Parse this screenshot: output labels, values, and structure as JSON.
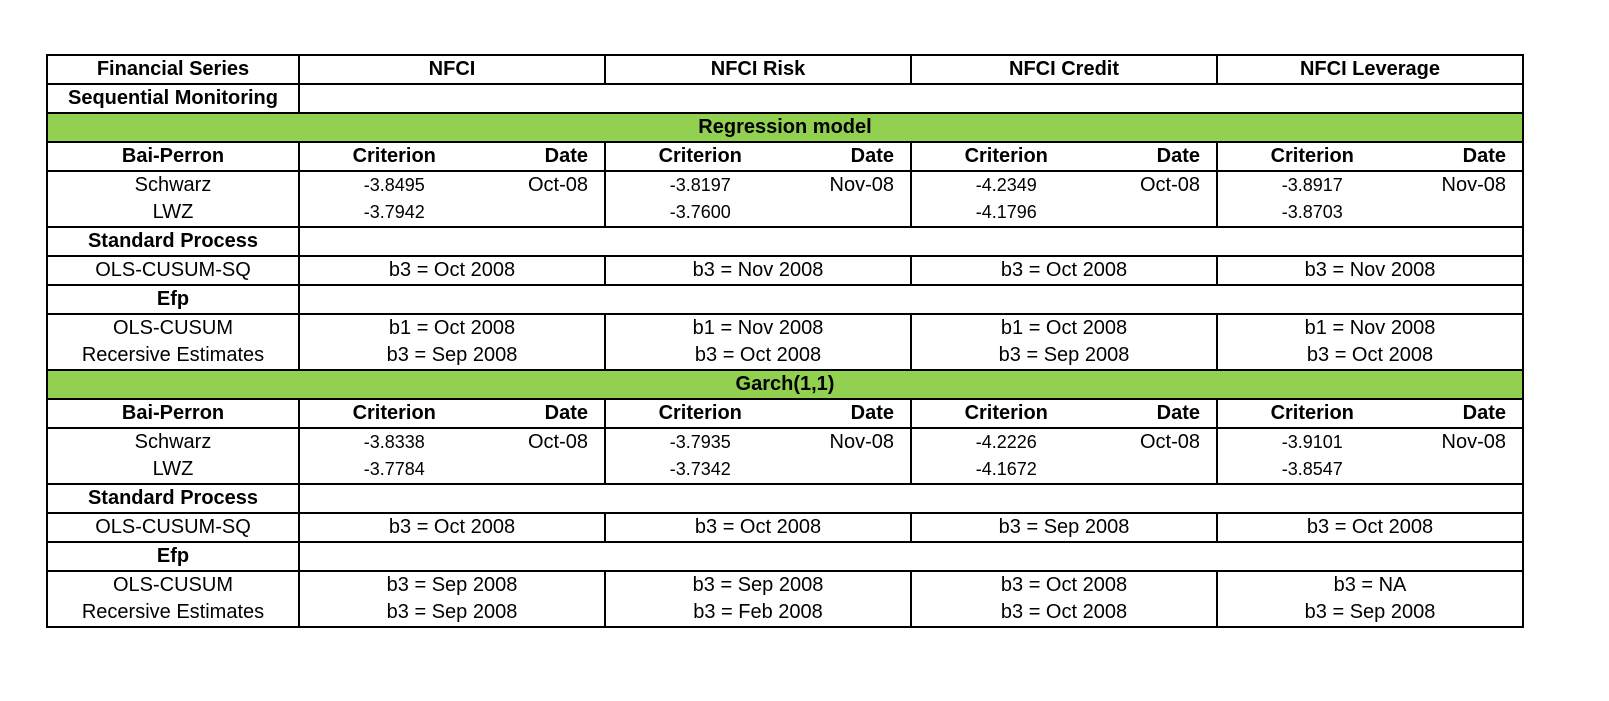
{
  "header": {
    "label": "Financial Series",
    "series": [
      "NFCI",
      "NFCI Risk",
      "NFCI Credit",
      "NFCI Leverage"
    ]
  },
  "sequential_label": "Sequential Monitoring",
  "sections": [
    {
      "title": "Regression model",
      "bai_perron": {
        "label": "Bai-Perron",
        "criterion_header": "Criterion",
        "date_header": "Date",
        "rows": [
          {
            "label": "Schwarz",
            "values": [
              {
                "criterion": "-3.8495",
                "date": "Oct-08"
              },
              {
                "criterion": "-3.8197",
                "date": "Nov-08"
              },
              {
                "criterion": "-4.2349",
                "date": "Oct-08"
              },
              {
                "criterion": "-3.8917",
                "date": "Nov-08"
              }
            ]
          },
          {
            "label": "LWZ",
            "values": [
              {
                "criterion": "-3.7942",
                "date": ""
              },
              {
                "criterion": "-3.7600",
                "date": ""
              },
              {
                "criterion": "-4.1796",
                "date": ""
              },
              {
                "criterion": "-3.8703",
                "date": ""
              }
            ]
          }
        ]
      },
      "standard_process": {
        "label": "Standard Process",
        "row": {
          "label": "OLS-CUSUM-SQ",
          "values": [
            "b3 = Oct 2008",
            "b3 = Nov 2008",
            "b3 = Oct 2008",
            "b3 = Nov 2008"
          ]
        }
      },
      "efp": {
        "label": "Efp",
        "rows": [
          {
            "label": "OLS-CUSUM",
            "values": [
              "b1 = Oct 2008",
              "b1 = Nov 2008",
              "b1 = Oct 2008",
              "b1 = Nov 2008"
            ]
          },
          {
            "label": "Recersive Estimates",
            "values": [
              "b3 = Sep 2008",
              "b3 = Oct 2008",
              "b3 = Sep 2008",
              "b3 = Oct 2008"
            ]
          }
        ]
      }
    },
    {
      "title": "Garch(1,1)",
      "bai_perron": {
        "label": "Bai-Perron",
        "criterion_header": "Criterion",
        "date_header": "Date",
        "rows": [
          {
            "label": "Schwarz",
            "values": [
              {
                "criterion": "-3.8338",
                "date": "Oct-08"
              },
              {
                "criterion": "-3.7935",
                "date": "Nov-08"
              },
              {
                "criterion": "-4.2226",
                "date": "Oct-08"
              },
              {
                "criterion": "-3.9101",
                "date": "Nov-08"
              }
            ]
          },
          {
            "label": "LWZ",
            "values": [
              {
                "criterion": "-3.7784",
                "date": ""
              },
              {
                "criterion": "-3.7342",
                "date": ""
              },
              {
                "criterion": "-4.1672",
                "date": ""
              },
              {
                "criterion": "-3.8547",
                "date": ""
              }
            ]
          }
        ]
      },
      "standard_process": {
        "label": "Standard Process",
        "row": {
          "label": "OLS-CUSUM-SQ",
          "values": [
            "b3 = Oct 2008",
            "b3 = Oct 2008",
            "b3 = Sep 2008",
            "b3 = Oct 2008"
          ]
        }
      },
      "efp": {
        "label": "Efp",
        "rows": [
          {
            "label": "OLS-CUSUM",
            "values": [
              "b3 = Sep 2008",
              "b3 = Sep 2008",
              "b3 = Oct 2008",
              "b3 = NA"
            ]
          },
          {
            "label": "Recersive Estimates",
            "values": [
              "b3 = Sep 2008",
              "b3 = Feb 2008",
              "b3 = Oct 2008",
              "b3 = Sep 2008"
            ]
          }
        ]
      }
    }
  ],
  "colors": {
    "section_band": "#92d050",
    "border": "#000000"
  }
}
